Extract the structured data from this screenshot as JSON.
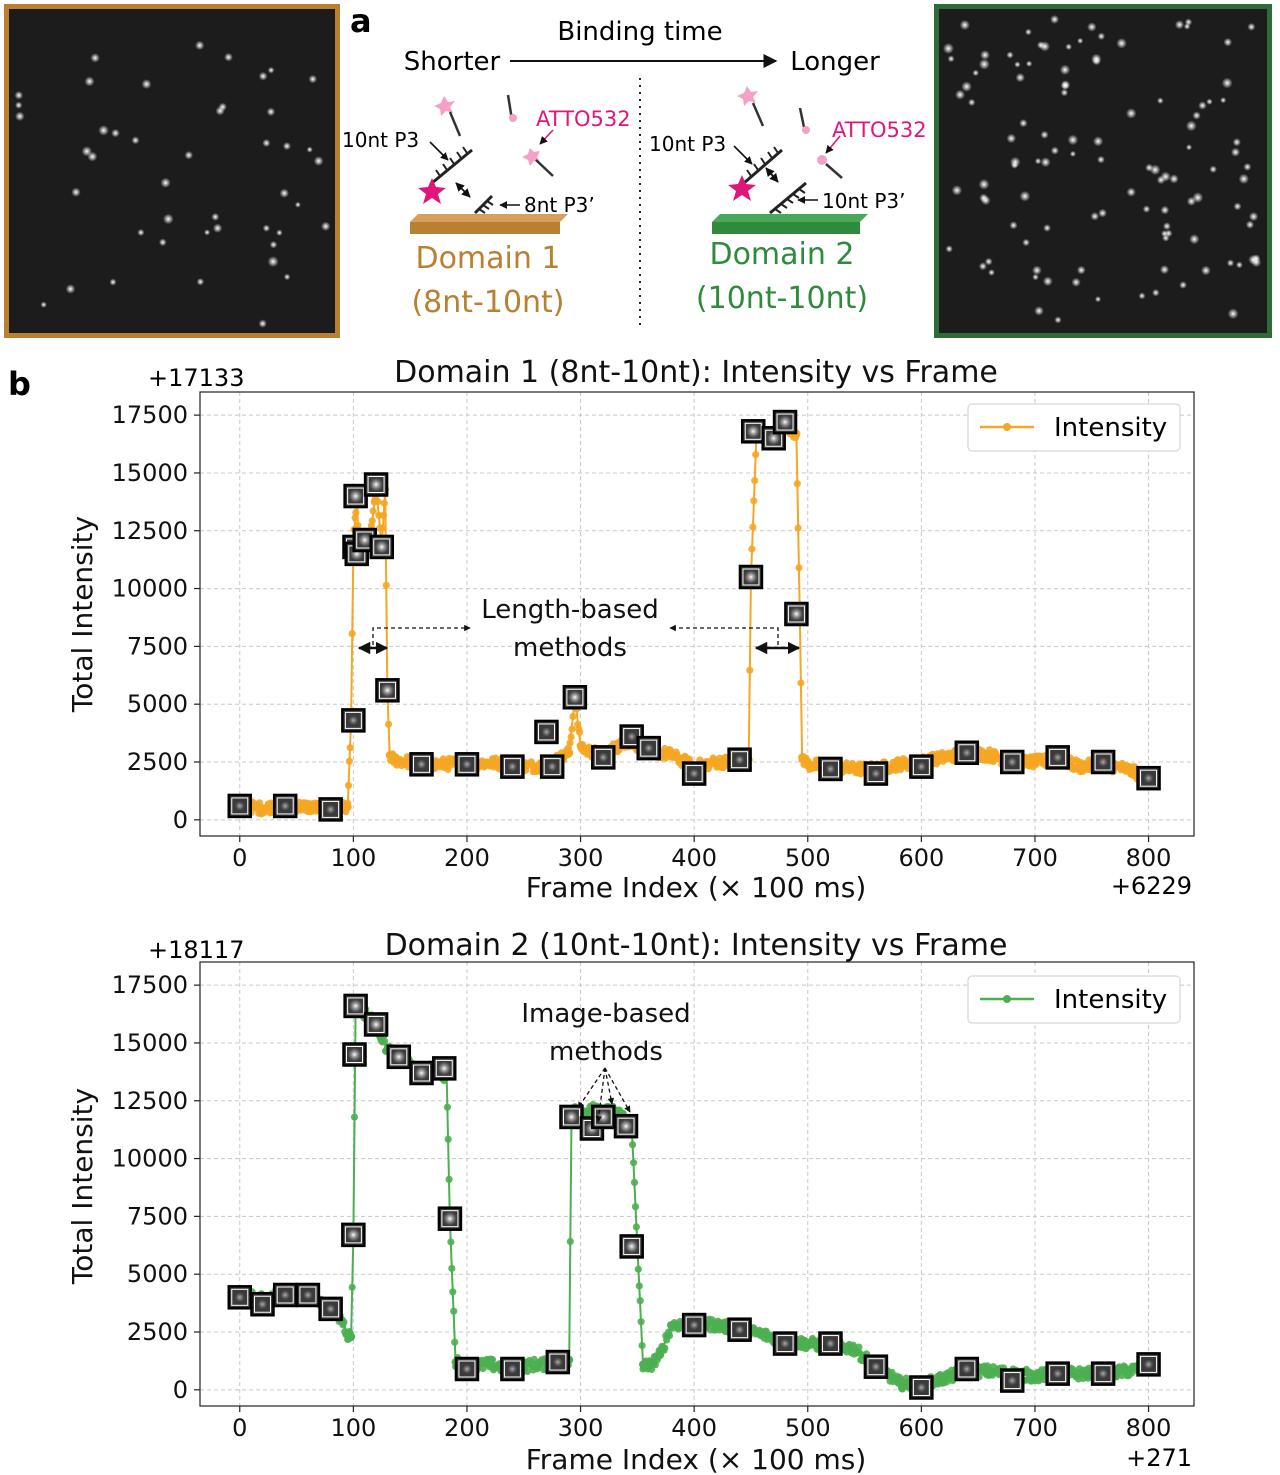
{
  "panel_a": {
    "label": "a",
    "arrow_top": "Binding time",
    "arrow_left": "Shorter",
    "arrow_right": "Longer",
    "left_strand_label": "10nt P3",
    "left_dye_label": "ATTO532",
    "left_anchor_label": "8nt P3’",
    "left_domain_name": "Domain 1",
    "left_domain_sub": "(8nt-10nt)",
    "right_strand_label": "10nt P3",
    "right_dye_label": "ATTO532",
    "right_anchor_label": "10nt P3’",
    "right_domain_name": "Domain 2",
    "right_domain_sub": "(10nt-10nt)",
    "colors": {
      "domain1": "#b98032",
      "domain2": "#2e8b3c",
      "dye": "#e0177a",
      "dye_light": "#f4a0c8"
    }
  },
  "panel_b": {
    "label": "b"
  },
  "chart_data": [
    {
      "type": "line",
      "title": "Domain 1 (8nt-10nt): Intensity vs Frame",
      "xlabel": "Frame Index (× 100 ms)",
      "ylabel": "Total Intensity",
      "x_offset_label": "+6229",
      "y_offset_label": "+17133",
      "xlim": [
        -35,
        840
      ],
      "ylim": [
        -700,
        18500
      ],
      "xticks": [
        0,
        100,
        200,
        300,
        400,
        500,
        600,
        700,
        800
      ],
      "yticks": [
        0,
        2500,
        5000,
        7500,
        10000,
        12500,
        15000,
        17500
      ],
      "grid": true,
      "legend": "top-right",
      "color": "#f5a623",
      "series": [
        {
          "name": "Intensity",
          "x": [
            0,
            20,
            40,
            60,
            80,
            95,
            98,
            100,
            103,
            105,
            110,
            115,
            120,
            125,
            128,
            130,
            132,
            135,
            150,
            175,
            200,
            225,
            250,
            270,
            280,
            290,
            295,
            300,
            305,
            320,
            340,
            360,
            380,
            400,
            420,
            440,
            448,
            450,
            455,
            460,
            470,
            480,
            490,
            493,
            495,
            500,
            520,
            540,
            560,
            580,
            600,
            620,
            640,
            660,
            680,
            700,
            720,
            740,
            760,
            780,
            800
          ],
          "y": [
            600,
            500,
            650,
            550,
            480,
            550,
            4300,
            11800,
            14000,
            11500,
            12200,
            12100,
            14400,
            11800,
            14300,
            5500,
            2800,
            2600,
            2500,
            2400,
            2450,
            2450,
            2300,
            2350,
            2600,
            2900,
            5300,
            3200,
            3000,
            2800,
            3400,
            3000,
            2800,
            2300,
            2500,
            2500,
            2600,
            10500,
            16800,
            16600,
            16500,
            17100,
            16700,
            8900,
            2700,
            2400,
            2300,
            2200,
            2200,
            2400,
            2500,
            2700,
            2900,
            2800,
            2500,
            2500,
            2600,
            2300,
            2400,
            2200,
            1800
          ]
        }
      ],
      "thumbnails": {
        "x": [
          0,
          40,
          80,
          100,
          101,
          102,
          103,
          110,
          120,
          125,
          130,
          160,
          200,
          240,
          270,
          275,
          295,
          320,
          345,
          360,
          400,
          440,
          450,
          452,
          470,
          480,
          490,
          520,
          560,
          600,
          640,
          680,
          720,
          760,
          800
        ],
        "y": [
          600,
          600,
          450,
          4300,
          11800,
          14000,
          11500,
          12100,
          14500,
          11800,
          5600,
          2400,
          2400,
          2300,
          3800,
          2300,
          5300,
          2700,
          3600,
          3100,
          2000,
          2600,
          10500,
          16800,
          16500,
          17200,
          8900,
          2200,
          2000,
          2300,
          2900,
          2500,
          2700,
          2500,
          1800
        ]
      },
      "annotation": {
        "text_line1": "Length-based",
        "text_line2": "methods"
      }
    },
    {
      "type": "line",
      "title": "Domain 2 (10nt-10nt): Intensity vs Frame",
      "xlabel": "Frame Index (× 100 ms)",
      "ylabel": "Total Intensity",
      "x_offset_label": "+271",
      "y_offset_label": "+18117",
      "xlim": [
        -35,
        840
      ],
      "ylim": [
        -700,
        18500
      ],
      "xticks": [
        0,
        100,
        200,
        300,
        400,
        500,
        600,
        700,
        800
      ],
      "yticks": [
        0,
        2500,
        5000,
        7500,
        10000,
        12500,
        15000,
        17500
      ],
      "grid": true,
      "legend": "top-right",
      "color": "#4caf50",
      "series": [
        {
          "name": "Intensity",
          "x": [
            0,
            20,
            40,
            60,
            80,
            90,
            95,
            98,
            100,
            102,
            110,
            120,
            130,
            140,
            150,
            160,
            170,
            180,
            182,
            185,
            190,
            200,
            220,
            240,
            260,
            280,
            290,
            292,
            295,
            300,
            310,
            320,
            330,
            340,
            345,
            350,
            355,
            360,
            370,
            380,
            400,
            420,
            440,
            460,
            480,
            500,
            520,
            540,
            560,
            570,
            580,
            600,
            620,
            640,
            660,
            680,
            700,
            720,
            740,
            760,
            780,
            800
          ],
          "y": [
            4100,
            3900,
            4300,
            4100,
            3500,
            3000,
            2400,
            2300,
            6700,
            16500,
            16300,
            15800,
            14700,
            14400,
            14100,
            13700,
            13900,
            13600,
            13900,
            7300,
            1200,
            1000,
            1100,
            900,
            1100,
            1100,
            1300,
            11800,
            12200,
            11700,
            12100,
            12000,
            12100,
            11700,
            11400,
            6200,
            1100,
            1000,
            1500,
            2800,
            2900,
            2800,
            2600,
            2400,
            2100,
            2000,
            1900,
            1800,
            1000,
            700,
            300,
            200,
            500,
            800,
            800,
            700,
            600,
            700,
            700,
            700,
            800,
            1000
          ]
        }
      ],
      "thumbnails": {
        "x": [
          0,
          20,
          40,
          60,
          80,
          100,
          101,
          102,
          120,
          140,
          160,
          180,
          185,
          200,
          240,
          280,
          292,
          310,
          320,
          340,
          345,
          400,
          440,
          480,
          520,
          560,
          600,
          640,
          680,
          720,
          760,
          800
        ],
        "y": [
          4000,
          3700,
          4100,
          4100,
          3500,
          6700,
          14500,
          16600,
          15800,
          14400,
          13700,
          13900,
          7400,
          900,
          900,
          1200,
          11800,
          11300,
          11800,
          11400,
          6200,
          2800,
          2600,
          2000,
          2000,
          1000,
          100,
          900,
          400,
          700,
          700,
          1100
        ]
      },
      "annotation": {
        "text_line1": "Image-based",
        "text_line2": "methods"
      }
    }
  ]
}
